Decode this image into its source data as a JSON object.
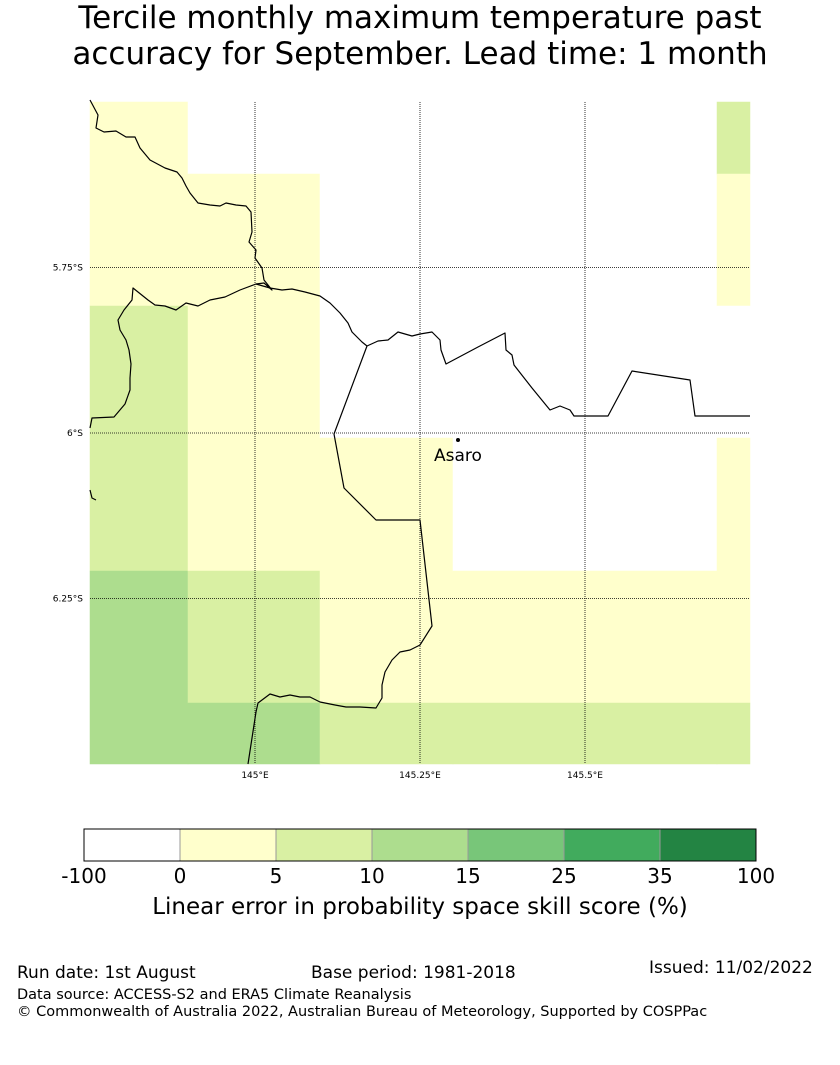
{
  "title": {
    "line1": "Tercile monthly maximum temperature past",
    "line2": "accuracy for September. Lead time: 1 month"
  },
  "map": {
    "lon_range": [
      144.75,
      145.75
    ],
    "lat_range": [
      -6.5,
      -5.5
    ],
    "lat_ticks": [
      {
        "value": -5.75,
        "label": "5.75°S"
      },
      {
        "value": -6.0,
        "label": "6°S"
      },
      {
        "value": -6.25,
        "label": "6.25°S"
      }
    ],
    "lon_ticks": [
      {
        "value": 145.0,
        "label": "145°E"
      },
      {
        "value": 145.25,
        "label": "145.25°E"
      },
      {
        "value": 145.5,
        "label": "145.5°E"
      }
    ],
    "place": {
      "name": "Asaro",
      "lon": 145.06,
      "lat": -6.01
    },
    "grid_rows_lat_top": [
      -5.5,
      -5.6,
      -5.8,
      -6.0,
      -6.2,
      -6.4
    ],
    "grid_cols_lon_left": [
      144.75,
      144.9,
      145.1,
      145.3,
      145.5,
      145.7
    ],
    "cell_values": [
      [
        2,
        -50,
        -50,
        -50,
        -50,
        7
      ],
      [
        2,
        2,
        -50,
        -50,
        -50,
        2
      ],
      [
        7,
        2,
        -50,
        -50,
        -50,
        -50
      ],
      [
        7,
        2,
        2,
        2,
        -50,
        2
      ],
      [
        12,
        7,
        2,
        2,
        2,
        2
      ],
      [
        12,
        12,
        7,
        7,
        7,
        7
      ]
    ]
  },
  "colorbar": {
    "bins": [
      {
        "from": "-100",
        "to": "0",
        "color": "#ffffff"
      },
      {
        "from": "0",
        "to": "5",
        "color": "#ffffcc"
      },
      {
        "from": "5",
        "to": "10",
        "color": "#d9f0a3"
      },
      {
        "from": "10",
        "to": "15",
        "color": "#addd8e"
      },
      {
        "from": "15",
        "to": "25",
        "color": "#78c679"
      },
      {
        "from": "25",
        "to": "35",
        "color": "#41ab5d"
      },
      {
        "from": "35",
        "to": "100",
        "color": "#238443"
      }
    ],
    "labels": [
      "-100",
      "0",
      "5",
      "10",
      "15",
      "25",
      "35",
      "100"
    ],
    "title": "Linear error in probability space skill score (%)"
  },
  "footer": {
    "run_date": "Run date: 1st August",
    "base_period": "Base period: 1981-2018",
    "issued": "Issued: 11/02/2022",
    "data_source": "Data source: ACCESS-S2 and ERA5 Climate Reanalysis",
    "copyright": "© Commonwealth of Australia 2022, Australian Bureau of Meteorology, Supported by COSPPac"
  }
}
